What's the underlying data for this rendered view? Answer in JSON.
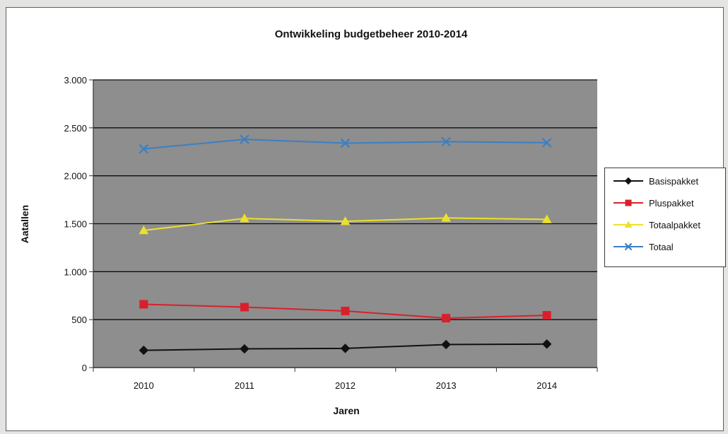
{
  "chart_data": {
    "type": "line",
    "title": "Ontwikkeling budgetbeheer 2010-2014",
    "xlabel": "Jaren",
    "ylabel": "Aatallen",
    "categories": [
      "2010",
      "2011",
      "2012",
      "2013",
      "2014"
    ],
    "ylim": [
      0,
      3000
    ],
    "yticks": [
      0,
      500,
      1000,
      1500,
      2000,
      2500,
      3000
    ],
    "ytick_labels": [
      "0",
      "500",
      "1.000",
      "1.500",
      "2.000",
      "2.500",
      "3.000"
    ],
    "grid": true,
    "legend_position": "right",
    "plot_background": "#8e8e8e",
    "series": [
      {
        "name": "Basispakket",
        "values": [
          180,
          195,
          200,
          240,
          245
        ],
        "color": "#111111",
        "marker": "diamond"
      },
      {
        "name": "Pluspakket",
        "values": [
          660,
          630,
          590,
          515,
          545
        ],
        "color": "#d9202a",
        "marker": "square"
      },
      {
        "name": "Totaalpakket",
        "values": [
          1430,
          1555,
          1525,
          1560,
          1545
        ],
        "color": "#ece12a",
        "marker": "triangle"
      },
      {
        "name": "Totaal",
        "values": [
          2280,
          2380,
          2340,
          2355,
          2345
        ],
        "color": "#3b7fc4",
        "marker": "x"
      }
    ]
  }
}
